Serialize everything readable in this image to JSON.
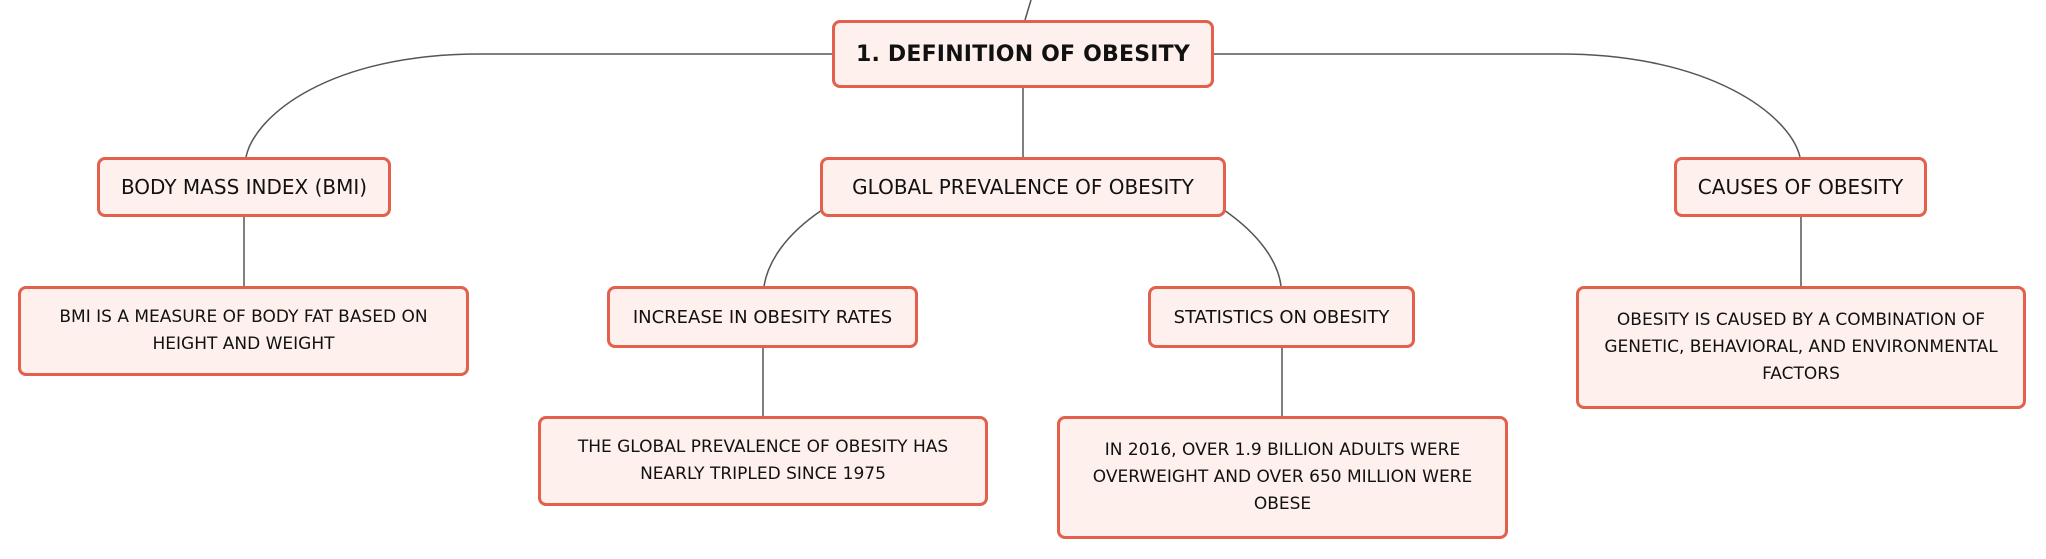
{
  "diagram": {
    "root": "1. DEFINITION OF OBESITY",
    "branches": [
      {
        "label": "BODY MASS INDEX (BMI)",
        "children": [
          "BMI IS A MEASURE OF BODY FAT BASED ON HEIGHT AND WEIGHT"
        ]
      },
      {
        "label": "GLOBAL PREVALENCE OF OBESITY",
        "children": [
          {
            "label": "INCREASE IN OBESITY RATES",
            "children": [
              "THE GLOBAL PREVALENCE OF OBESITY HAS NEARLY TRIPLED SINCE 1975"
            ]
          },
          {
            "label": "STATISTICS ON OBESITY",
            "children": [
              "IN 2016, OVER 1.9 BILLION ADULTS WERE OVERWEIGHT AND OVER 650 MILLION WERE OBESE"
            ]
          }
        ]
      },
      {
        "label": "CAUSES OF OBESITY",
        "children": [
          "OBESITY IS CAUSED BY A COMBINATION OF GENETIC, BEHAVIORAL, AND ENVIRONMENTAL FACTORS"
        ]
      }
    ]
  },
  "colors": {
    "node_fill": "#fdf0ed",
    "node_border": "#e2604c",
    "connector": "#555555",
    "text": "#111111"
  }
}
